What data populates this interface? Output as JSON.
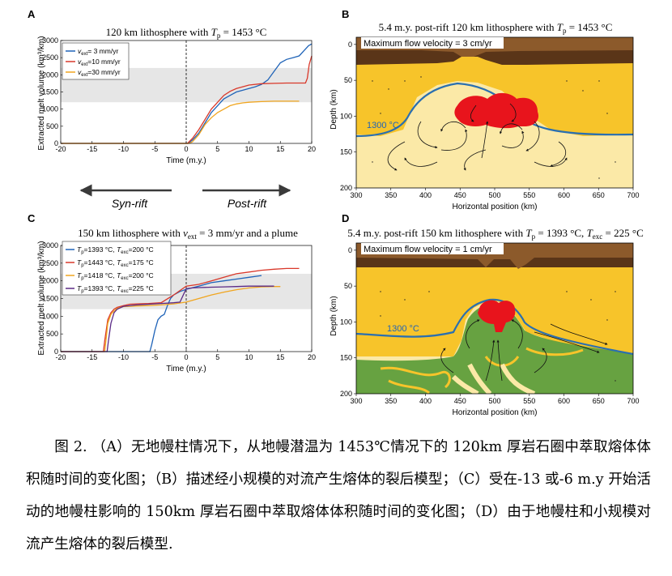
{
  "panel_a": {
    "letter": "A",
    "title_pre": "120 km lithosphere with ",
    "title_var": "T",
    "title_sub": "p",
    "title_post": " = 1453 °C",
    "ylabel": "Extracted melt volume (km³/km)",
    "xlabel": "Time (m.y.)",
    "legend": [
      {
        "sym": "v",
        "sub": "ext",
        "text": "= 3 mm/yr",
        "color": "#1f63b8"
      },
      {
        "sym": "v",
        "sub": "ext",
        "text": "=10 mm/yr",
        "color": "#d9382a"
      },
      {
        "sym": "v",
        "sub": "ext",
        "text": "=30 mm/yr",
        "color": "#f0a51f"
      }
    ]
  },
  "panel_c": {
    "letter": "C",
    "title_pre": "150 km lithosphere with ",
    "title_var": "v",
    "title_sub": "ext",
    "title_post": " = 3 mm/yr and a plume",
    "ylabel": "Extracted melt volume (km³/km)",
    "xlabel": "Time (m.y.)",
    "legend": [
      {
        "tp": "=1393 °C,",
        "tx": "=200 °C",
        "color": "#1f63b8"
      },
      {
        "tp": "=1443 °C,",
        "tx": "=175 °C",
        "color": "#d9382a"
      },
      {
        "tp": "=1418 °C,",
        "tx": "=200 °C",
        "color": "#f0a51f"
      },
      {
        "tp": "=1393 °C,",
        "tx": "=225 °C",
        "color": "#5b2a86"
      }
    ]
  },
  "arrows": {
    "syn": "Syn-rift",
    "post": "Post-rift"
  },
  "panel_b": {
    "letter": "B",
    "title_pre": "5.4 m.y. post-rift 120 km lithosphere with ",
    "title_var": "T",
    "title_sub": "p",
    "title_post": " = 1453 °C",
    "velocity": "Maximum flow velocity = 3 cm/yr",
    "isotherm": "1300 °C",
    "ylabel": "Depth (km)",
    "xlabel": "Horizontal position (km)",
    "xticks": [
      "300",
      "350",
      "400",
      "450",
      "500",
      "550",
      "600",
      "650",
      "700"
    ],
    "yticks": [
      "0",
      "50",
      "100",
      "150",
      "200"
    ]
  },
  "panel_d": {
    "letter": "D",
    "title_pre": "5.4 m.y. post-rift 150 km lithosphere with ",
    "title_var": "T",
    "title_sub": "p",
    "title_mid": " = 1393 °C, ",
    "title_var2": "T",
    "title_sub2": "exc",
    "title_post": " = 225 °C",
    "velocity": "Maximum flow velocity = 1 cm/yr",
    "isotherm": "1300 °C",
    "ylabel": "Depth (km)",
    "xlabel": "Horizontal position (km)",
    "xticks": [
      "300",
      "350",
      "400",
      "450",
      "500",
      "550",
      "600",
      "650",
      "700"
    ],
    "yticks": [
      "0",
      "50",
      "100",
      "150",
      "200"
    ]
  },
  "caption": {
    "line1": "图 2. （A）无地幔柱情况下，从地幔潜温为 1453℃情况下的 120km 厚岩石圈中萃取熔体体积随时间的变化图；（B）描述经小规模的对流产生熔体的裂后模型；（C）受在-13 或-6 m.y 开始活动的地幔柱影响的 150km 厚岩石圈中萃取熔体体积随时间的变化图；（D）由于地幔柱和小规模对流产生熔体的裂后模型."
  },
  "colors": {
    "blue": "#1f63b8",
    "red": "#d9382a",
    "orange": "#f0a51f",
    "purple": "#5b2a86",
    "band": "#e6e6e6",
    "melt": "#e8141c",
    "mantle": "#fbe9a7",
    "litho": "#f7c42a",
    "crust_dark": "#5a3518",
    "crust_light": "#8c5a2b",
    "green": "#5f9e3b"
  },
  "chart_data": [
    {
      "id": "A",
      "type": "line",
      "title": "120 km lithosphere with Tp = 1453 °C",
      "xlabel": "Time (m.y.)",
      "ylabel": "Extracted melt volume (km³/km)",
      "xlim": [
        -20,
        20
      ],
      "ylim": [
        0,
        3000
      ],
      "xticks": [
        -20,
        -15,
        -10,
        -5,
        0,
        5,
        10,
        15,
        20
      ],
      "yticks": [
        0,
        500,
        1000,
        1500,
        2000,
        2500,
        3000
      ],
      "band": [
        1200,
        2200
      ],
      "series": [
        {
          "name": "vext = 3 mm/yr",
          "color": "#1f63b8",
          "x": [
            -20,
            0.3,
            1,
            2,
            3,
            4,
            5,
            6,
            7,
            8,
            9,
            10,
            11,
            12,
            13,
            14,
            15,
            16,
            17,
            18,
            19,
            19.5,
            20
          ],
          "y": [
            0,
            0,
            100,
            300,
            600,
            900,
            1100,
            1300,
            1400,
            1500,
            1550,
            1600,
            1650,
            1720,
            1850,
            2100,
            2350,
            2450,
            2500,
            2550,
            2750,
            2850,
            2900
          ]
        },
        {
          "name": "vext =10 mm/yr",
          "color": "#d9382a",
          "x": [
            -20,
            0.2,
            1,
            2,
            3,
            4,
            5,
            6,
            7,
            8,
            9,
            10,
            12,
            14,
            16,
            17,
            18,
            19,
            19.3,
            19.6,
            20
          ],
          "y": [
            0,
            0,
            150,
            400,
            700,
            1000,
            1200,
            1400,
            1520,
            1600,
            1650,
            1700,
            1740,
            1750,
            1760,
            1760,
            1760,
            1760,
            1900,
            2300,
            2550
          ]
        },
        {
          "name": "vext =30 mm/yr",
          "color": "#f0a51f",
          "x": [
            -20,
            0.5,
            1,
            2,
            3,
            4,
            5,
            6,
            7,
            8,
            9,
            10,
            12,
            14,
            16,
            18
          ],
          "y": [
            0,
            0,
            50,
            250,
            550,
            750,
            900,
            1000,
            1100,
            1150,
            1180,
            1200,
            1220,
            1230,
            1230,
            1230
          ]
        }
      ]
    },
    {
      "id": "C",
      "type": "line",
      "title": "150 km lithosphere with vext = 3 mm/yr and a plume",
      "xlabel": "Time (m.y.)",
      "ylabel": "Extracted melt volume (km³/km)",
      "xlim": [
        -20,
        20
      ],
      "ylim": [
        0,
        3000
      ],
      "xticks": [
        -20,
        -15,
        -10,
        -5,
        0,
        5,
        10,
        15,
        20
      ],
      "yticks": [
        0,
        500,
        1000,
        1500,
        2000,
        2500,
        3000
      ],
      "band": [
        1200,
        2200
      ],
      "series": [
        {
          "name": "Tp=1393 °C, Texc=200 °C",
          "color": "#1f63b8",
          "x": [
            -20,
            -5.8,
            -5.5,
            -5,
            -4.5,
            -4,
            -3.5,
            -3,
            -2.5,
            -2,
            -1,
            0,
            2,
            4,
            6,
            8,
            10,
            12
          ],
          "y": [
            0,
            0,
            200,
            600,
            900,
            1000,
            1050,
            1300,
            1500,
            1600,
            1700,
            1760,
            1850,
            1950,
            2000,
            2050,
            2100,
            2150
          ]
        },
        {
          "name": "Tp=1443 °C, Texc=175 °C",
          "color": "#d9382a",
          "x": [
            -20,
            -13.2,
            -13,
            -12.5,
            -12,
            -11.5,
            -11,
            -10,
            -9,
            -8,
            -6,
            -4,
            -2,
            0,
            2,
            4,
            6,
            8,
            10,
            12,
            14,
            16,
            18
          ],
          "y": [
            0,
            0,
            300,
            900,
            1100,
            1200,
            1250,
            1300,
            1340,
            1350,
            1360,
            1380,
            1600,
            1850,
            1900,
            2000,
            2100,
            2200,
            2250,
            2300,
            2330,
            2350,
            2350
          ]
        },
        {
          "name": "Tp=1418 °C, Texc=200 °C",
          "color": "#f0a51f",
          "x": [
            -20,
            -13,
            -12.8,
            -12.5,
            -12,
            -11.5,
            -11,
            -10,
            -8,
            -6,
            -4,
            -2,
            0,
            2,
            4,
            6,
            8,
            10,
            12,
            14,
            15
          ],
          "y": [
            0,
            0,
            300,
            800,
            1050,
            1150,
            1220,
            1270,
            1290,
            1300,
            1320,
            1350,
            1400,
            1500,
            1600,
            1680,
            1750,
            1800,
            1830,
            1840,
            1840
          ]
        },
        {
          "name": "Tp=1393 °C, Texc=225 °C",
          "color": "#5b2a86",
          "x": [
            -20,
            -12.6,
            -12.4,
            -12,
            -11.5,
            -11,
            -10,
            -8,
            -6,
            -4,
            -2,
            -1,
            0,
            1,
            2,
            4,
            6,
            8,
            10,
            12,
            14
          ],
          "y": [
            0,
            0,
            300,
            800,
            1100,
            1200,
            1280,
            1320,
            1340,
            1360,
            1380,
            1400,
            1780,
            1800,
            1810,
            1820,
            1830,
            1840,
            1850,
            1850,
            1850
          ]
        }
      ]
    },
    {
      "id": "B",
      "type": "heatmap",
      "title": "5.4 m.y. post-rift 120 km lithosphere with Tp = 1453 °C",
      "xlabel": "Horizontal position (km)",
      "ylabel": "Depth (km)",
      "xlim": [
        300,
        700
      ],
      "ylim": [
        200,
        -10
      ]
    },
    {
      "id": "D",
      "type": "heatmap",
      "title": "5.4 m.y. post-rift 150 km lithosphere with Tp = 1393 °C, Texc = 225 °C",
      "xlabel": "Horizontal position (km)",
      "ylabel": "Depth (km)",
      "xlim": [
        300,
        700
      ],
      "ylim": [
        200,
        -10
      ]
    }
  ]
}
